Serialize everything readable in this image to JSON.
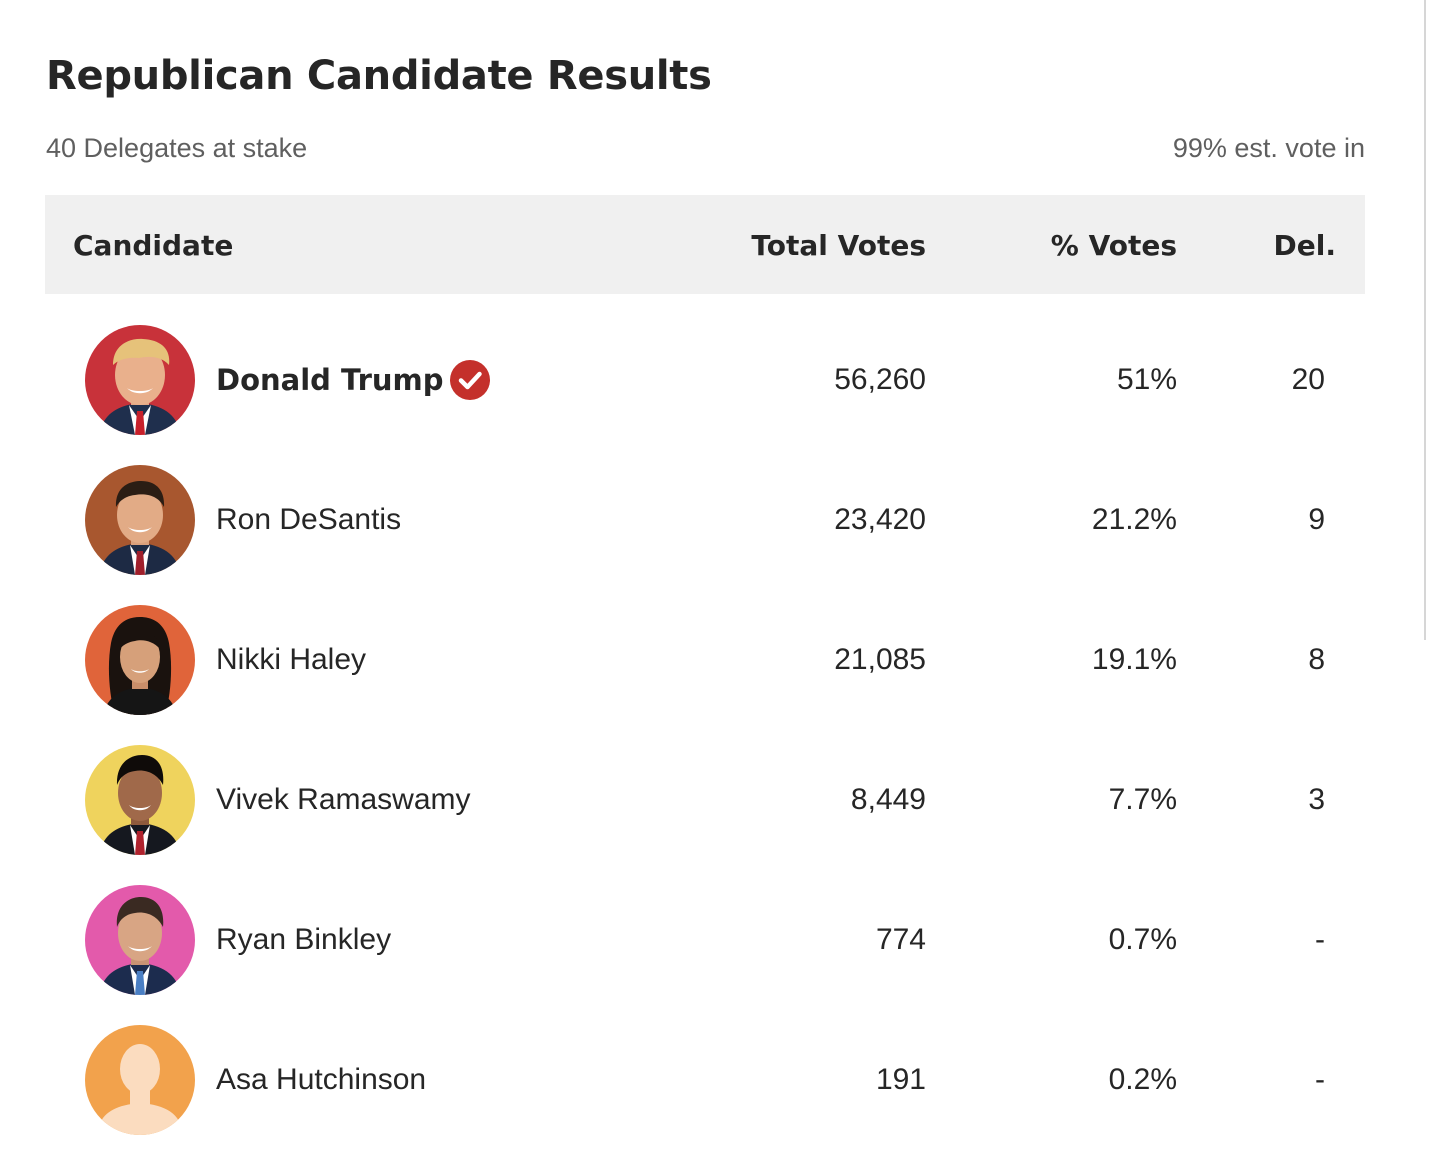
{
  "title": "Republican Candidate Results",
  "delegates_at_stake": "40 Delegates at stake",
  "est_vote_in": "99% est. vote in",
  "columns": {
    "candidate": "Candidate",
    "total_votes": "Total Votes",
    "pct_votes": "% Votes",
    "delegates": "Del."
  },
  "colors": {
    "winner_check": "#c4302b",
    "header_bg": "#f0f0f0",
    "text": "#262626",
    "muted_text": "#5f5f5f"
  },
  "candidates": [
    {
      "name": "Donald Trump",
      "votes": "56,260",
      "pct": "51%",
      "del": "20",
      "winner": true,
      "avatar_bg": "#c8323a",
      "photo": "candidate-photo-trump"
    },
    {
      "name": "Ron DeSantis",
      "votes": "23,420",
      "pct": "21.2%",
      "del": "9",
      "winner": false,
      "avatar_bg": "#a8572f",
      "photo": "candidate-photo-desantis"
    },
    {
      "name": "Nikki Haley",
      "votes": "21,085",
      "pct": "19.1%",
      "del": "8",
      "winner": false,
      "avatar_bg": "#e0643a",
      "photo": "candidate-photo-haley"
    },
    {
      "name": "Vivek Ramaswamy",
      "votes": "8,449",
      "pct": "7.7%",
      "del": "3",
      "winner": false,
      "avatar_bg": "#efd35d",
      "photo": "candidate-photo-ramaswamy"
    },
    {
      "name": "Ryan Binkley",
      "votes": "774",
      "pct": "0.7%",
      "del": "-",
      "winner": false,
      "avatar_bg": "#e35aab",
      "photo": "candidate-photo-binkley"
    },
    {
      "name": "Asa Hutchinson",
      "votes": "191",
      "pct": "0.2%",
      "del": "-",
      "winner": false,
      "avatar_bg": "#f2a24c",
      "photo": "placeholder-person-silhouette"
    }
  ]
}
